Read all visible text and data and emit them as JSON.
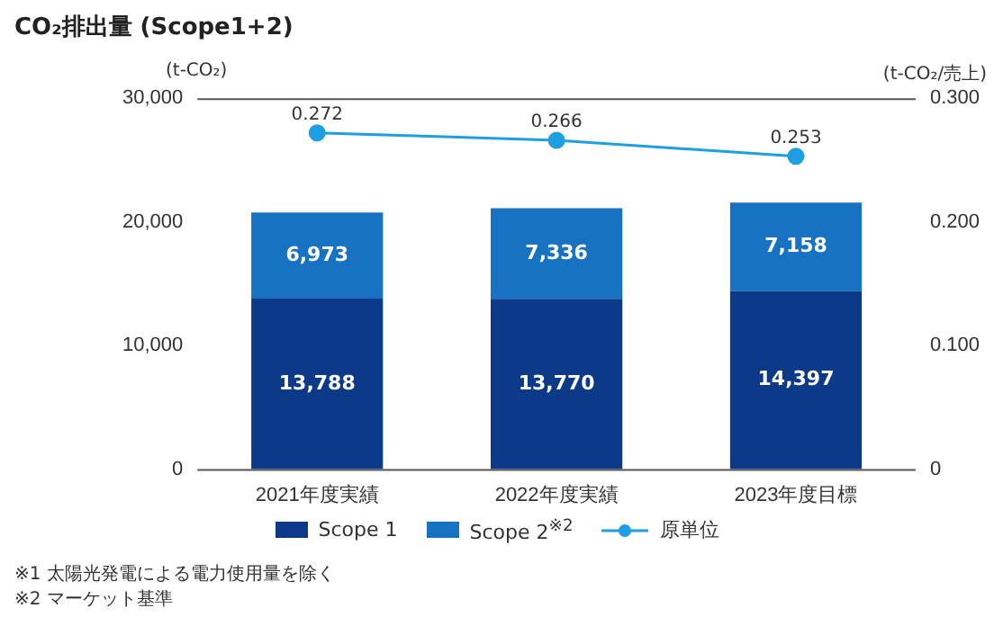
{
  "chart_data": {
    "type": "bar",
    "title": "CO₂排出量 (Scope1+2)",
    "ylabel": "(t-CO₂)",
    "y2label": "(t-CO₂/売上)",
    "categories": [
      "2021年度実績",
      "2022年度実績",
      "2023年度目標"
    ],
    "stacked": true,
    "series": [
      {
        "name": "Scope 1",
        "color": "#0c3a88",
        "values": [
          13788,
          13770,
          14397
        ],
        "value_labels": [
          "13,788",
          "13,770",
          "14,397"
        ]
      },
      {
        "name": "Scope 2$^{※2}$",
        "color": "#1872c2",
        "values": [
          6973,
          7336,
          7158
        ],
        "value_labels": [
          "6,973",
          "7,336",
          "7,158"
        ]
      },
      {
        "name": "原単位",
        "type": "line",
        "axis": "y2",
        "color": "#1e9fe3",
        "values": [
          0.272,
          0.266,
          0.253
        ],
        "value_labels": [
          "0.272",
          "0.266",
          "0.253"
        ]
      }
    ],
    "ylim": [
      0,
      30000
    ],
    "yticks": [
      {
        "value": 0,
        "label": "0"
      },
      {
        "value": 10000,
        "label": "10,000"
      },
      {
        "value": 20000,
        "label": "20,000"
      },
      {
        "value": 30000,
        "label": "30,000"
      }
    ],
    "y2lim": [
      0,
      0.3
    ],
    "y2ticks": [
      {
        "value": 0,
        "label": "0"
      },
      {
        "value": 0.1,
        "label": "0.100"
      },
      {
        "value": 0.2,
        "label": "0.200"
      },
      {
        "value": 0.3,
        "label": "0.300"
      }
    ],
    "legend": "bottom",
    "grid": false,
    "marker": "circle",
    "annotations": [
      "※1 太陽光発電による電力使用量を除く",
      "※2 マーケット基準"
    ]
  }
}
